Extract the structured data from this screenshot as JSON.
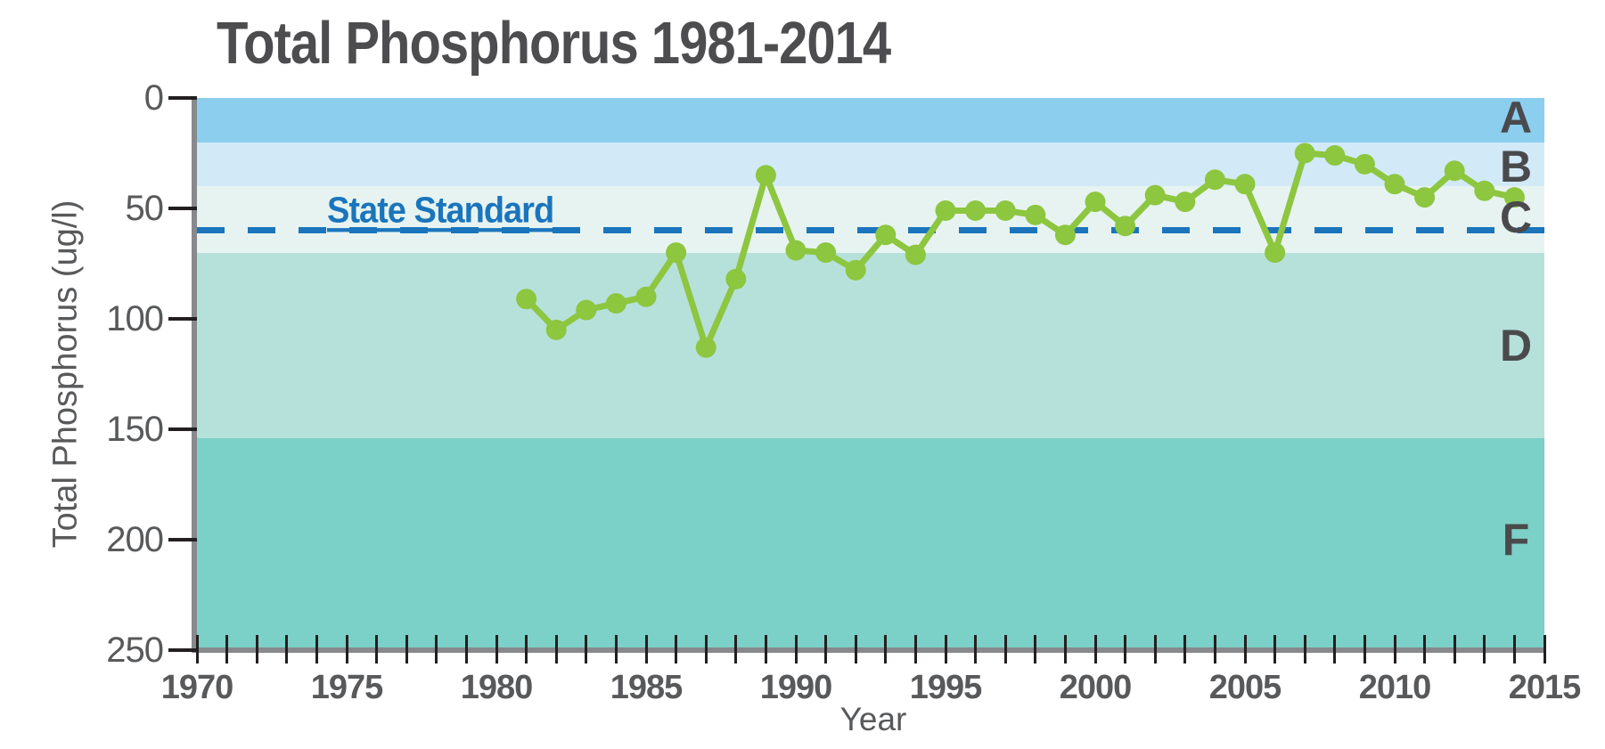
{
  "chart_data": {
    "type": "line",
    "title": "Total Phosphorus 1981-2014",
    "xlabel": "Year",
    "ylabel": "Total Phosphorus (ug/l)",
    "x_range": [
      1970,
      2015
    ],
    "y_range": [
      0,
      250
    ],
    "y_axis_inverted": true,
    "y_ticks": [
      0,
      50,
      100,
      150,
      200,
      250
    ],
    "x_major_ticks": [
      1970,
      1975,
      1980,
      1985,
      1990,
      1995,
      2000,
      2005,
      2010,
      2015
    ],
    "x_minor_tick_step": 1,
    "standard_line": {
      "label": "State Standard",
      "value": 60,
      "color": "#1B75BC",
      "style": "dashed"
    },
    "grade_bands": [
      {
        "grade": "A",
        "from": 0,
        "to": 20,
        "color": "#8CCEEE",
        "label_at": 9
      },
      {
        "grade": "B",
        "from": 20,
        "to": 40,
        "color": "#D2EAF8",
        "label_at": 31
      },
      {
        "grade": "C",
        "from": 40,
        "to": 70,
        "color": "#E7F3F1",
        "label_at": 54
      },
      {
        "grade": "D",
        "from": 70,
        "to": 154,
        "color": "#B6E1DB",
        "label_at": 112
      },
      {
        "grade": "F",
        "from": 154,
        "to": 250,
        "color": "#7BD0C7",
        "label_at": 200
      }
    ],
    "series": [
      {
        "name": "Total Phosphorus (ug/l)",
        "color": "#8DC63F",
        "x": [
          1981,
          1982,
          1983,
          1984,
          1985,
          1986,
          1987,
          1988,
          1989,
          1990,
          1991,
          1992,
          1993,
          1994,
          1995,
          1996,
          1997,
          1998,
          1999,
          2000,
          2001,
          2002,
          2003,
          2004,
          2005,
          2006,
          2007,
          2008,
          2009,
          2010,
          2011,
          2012,
          2013,
          2014
        ],
        "values": [
          91,
          105,
          96,
          93,
          90,
          70,
          113,
          82,
          35,
          69,
          70,
          78,
          62,
          71,
          51,
          51,
          51,
          53,
          62,
          47,
          58,
          44,
          47,
          37,
          39,
          70,
          25,
          26,
          30,
          39,
          45,
          33,
          42,
          45
        ]
      }
    ]
  }
}
